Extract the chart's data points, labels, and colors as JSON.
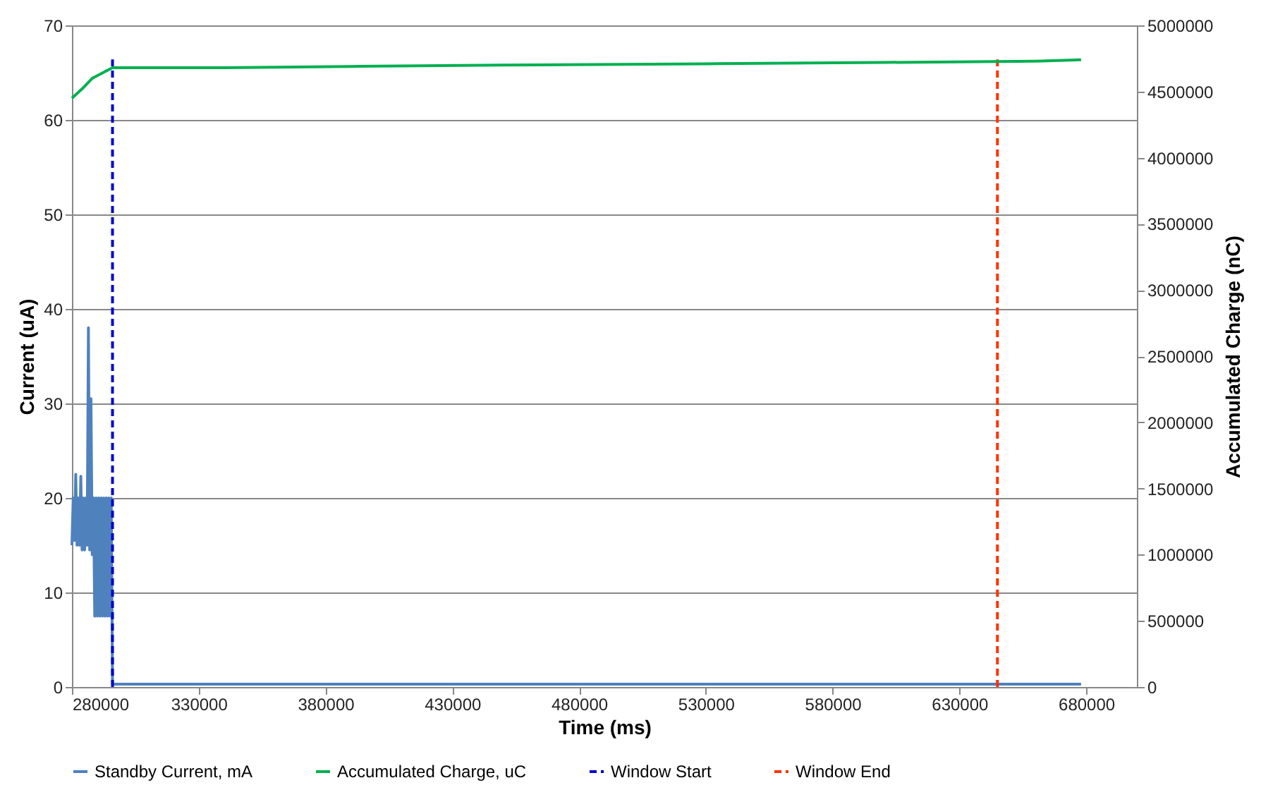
{
  "chart_data": {
    "type": "line",
    "xlabel": "Time (ms)",
    "ylabel": "Current (uA)",
    "y2label": "Accumulated Charge (nC)",
    "xlim": [
      280000,
      700000
    ],
    "xticks": [
      280000,
      330000,
      380000,
      430000,
      480000,
      530000,
      580000,
      630000,
      680000
    ],
    "ylim": [
      0,
      70
    ],
    "yticks": [
      0,
      10,
      20,
      30,
      40,
      50,
      60,
      70
    ],
    "y2lim": [
      0,
      5000000
    ],
    "y2ticks": [
      0,
      500000,
      1000000,
      1500000,
      2000000,
      2500000,
      3000000,
      3500000,
      4000000,
      4500000,
      5000000
    ],
    "grid": "y",
    "legend": "bottom",
    "series": [
      {
        "name": "Standby Current, mA",
        "color": "#4f81bd",
        "line_style": "solid",
        "x": [
          280000,
          280500,
          281000,
          281500,
          282000,
          282500,
          283000,
          283500,
          284000,
          284500,
          285000,
          285500,
          286000,
          286500,
          287000,
          287500,
          288000,
          288500,
          289000,
          289500,
          290000,
          290500,
          291000,
          291500,
          292000,
          292500,
          293000,
          293500,
          294000,
          294500,
          295000,
          295500,
          296000,
          350000,
          450000,
          550000,
          678000
        ],
        "values": [
          15,
          20,
          15.5,
          22.5,
          15,
          20,
          15,
          22.3,
          14.5,
          20,
          14.5,
          20,
          15,
          38,
          14.5,
          30.5,
          14,
          20,
          7.5,
          20,
          7.5,
          20,
          7.5,
          20,
          7.5,
          20,
          7.5,
          20,
          7.5,
          20,
          7.5,
          20,
          0.3,
          0.3,
          0.3,
          0.3,
          0.3
        ]
      },
      {
        "name": "Accumulated Charge, uC",
        "color": "#00b050",
        "line_style": "solid",
        "axis": "y2",
        "x": [
          280000,
          284000,
          288000,
          296000,
          340000,
          390000,
          450000,
          530000,
          600000,
          660000,
          678000
        ],
        "values": [
          4450000,
          4520000,
          4600000,
          4680000,
          4680000,
          4690000,
          4700000,
          4710000,
          4720000,
          4730000,
          4740000
        ]
      },
      {
        "name": "Window Start",
        "color": "#0000cc",
        "line_style": "dashed",
        "x": [
          296000,
          296000
        ],
        "values": [
          0,
          66.4
        ]
      },
      {
        "name": "Window End",
        "color": "#ff3300",
        "line_style": "dashed",
        "x": [
          645000,
          645000
        ],
        "values": [
          0,
          66.4
        ]
      }
    ]
  }
}
